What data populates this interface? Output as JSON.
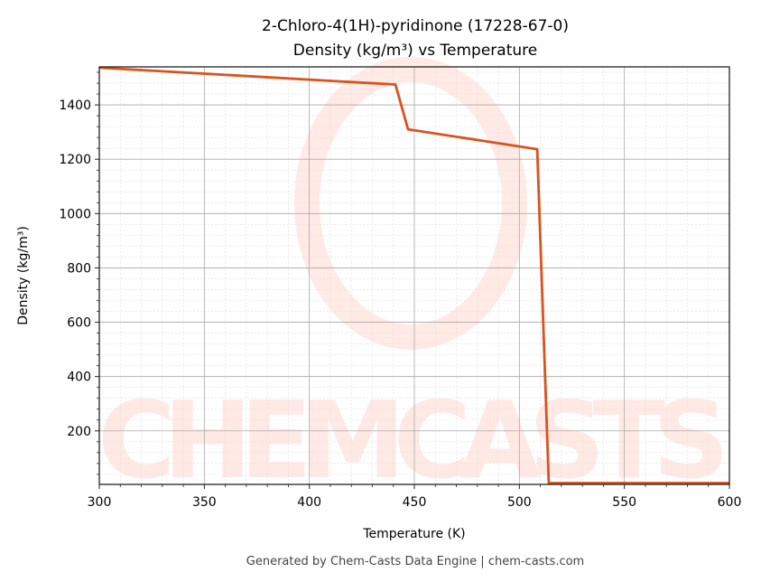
{
  "chart_data": {
    "type": "line",
    "title": "2-Chloro-4(1H)-pyridinone (17228-67-0)",
    "subtitle": "Density (kg/m³) vs Temperature",
    "xlabel": "Temperature (K)",
    "ylabel": "Density (kg/m³)",
    "xlim": [
      300,
      600
    ],
    "ylim": [
      3,
      1540
    ],
    "xticks": [
      300,
      350,
      400,
      450,
      500,
      550,
      600
    ],
    "yticks": [
      200,
      400,
      600,
      800,
      1000,
      1200,
      1400
    ],
    "grid": true,
    "series": [
      {
        "color": "#d9531e",
        "x": [
          300,
          441,
          447,
          508.5,
          514,
          600
        ],
        "y": [
          1537,
          1475,
          1310,
          1237,
          8,
          8
        ]
      }
    ],
    "watermark": "CHEMCASTS",
    "footer": "Generated by Chem-Casts Data Engine | chem-casts.com"
  }
}
